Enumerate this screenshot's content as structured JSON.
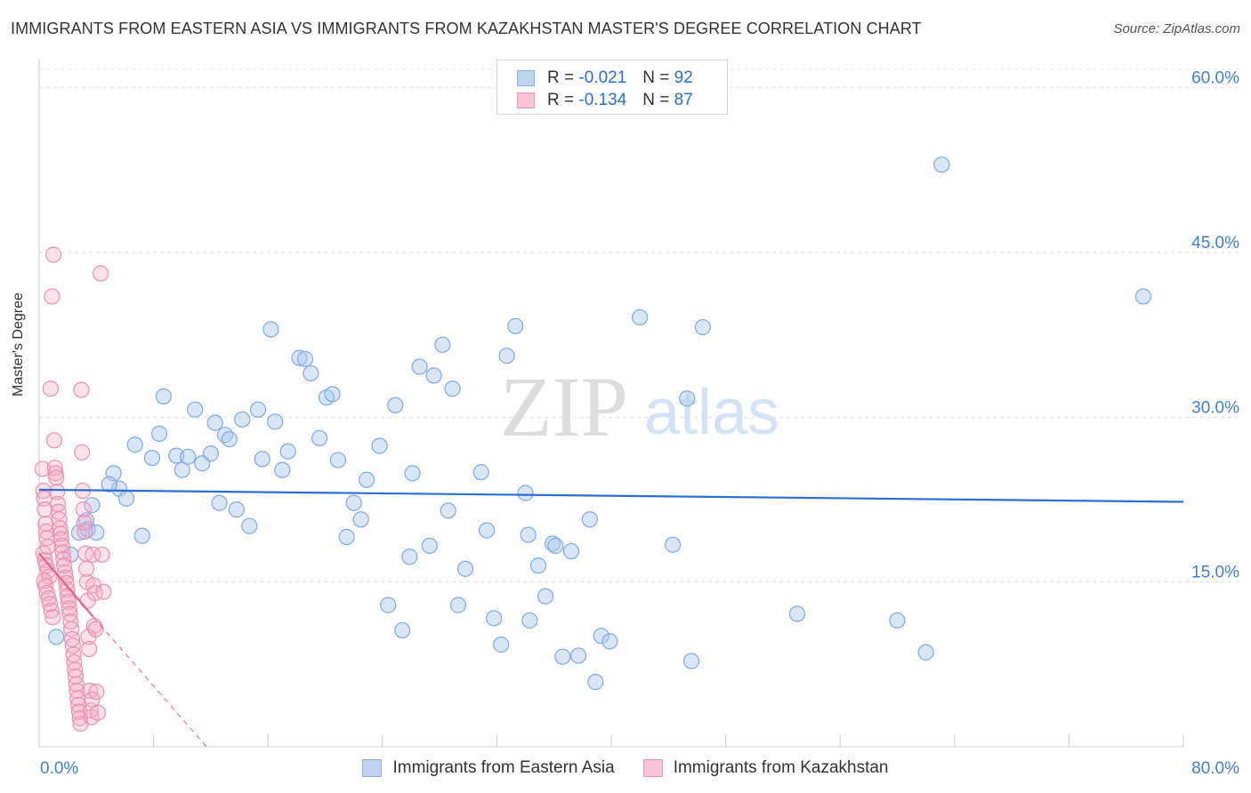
{
  "title": "IMMIGRANTS FROM EASTERN ASIA VS IMMIGRANTS FROM KAZAKHSTAN MASTER'S DEGREE CORRELATION CHART",
  "source": "Source: ZipAtlas.com",
  "watermark": {
    "zip": "ZIP",
    "atlas": "atlas"
  },
  "colors": {
    "blue": "#a9c8ef",
    "blue_line": "#2b6fd4",
    "pink": "#f4a9c2",
    "pink_line": "#e8608c",
    "tick_text": "#3f7fd6"
  },
  "legend_top": {
    "rows": [
      {
        "r_label": "R =",
        "r_value": "-0.021",
        "n_label": "N =",
        "n_value": "92"
      },
      {
        "r_label": "R =",
        "r_value": "-0.134",
        "n_label": "N =",
        "n_value": "87"
      }
    ]
  },
  "legend_bottom": {
    "series": [
      "Immigrants from Eastern Asia",
      "Immigrants from Kazakhstan"
    ]
  },
  "chart_data": {
    "type": "scatter",
    "title": "IMMIGRANTS FROM EASTERN ASIA VS IMMIGRANTS FROM KAZAKHSTAN MASTER'S DEGREE CORRELATION CHART",
    "xlabel": "",
    "ylabel": "Master's Degree",
    "xlim": [
      0,
      80
    ],
    "ylim": [
      0,
      62
    ],
    "x_tick_labels": [
      "0.0%",
      "80.0%"
    ],
    "y_ticks": [
      15,
      30,
      45,
      60
    ],
    "y_tick_labels": [
      "15.0%",
      "30.0%",
      "45.0%",
      "60.0%"
    ],
    "series": [
      {
        "name": "Immigrants from Eastern Asia",
        "R": -0.021,
        "N": 92,
        "trend": {
          "x": [
            0,
            80
          ],
          "y": [
            23.4,
            22.3
          ],
          "style": "solid"
        },
        "points": [
          [
            1.2,
            10.0
          ],
          [
            2.2,
            17.5
          ],
          [
            2.8,
            19.5
          ],
          [
            3.3,
            20.6
          ],
          [
            3.7,
            22.0
          ],
          [
            3.4,
            19.8
          ],
          [
            4.0,
            19.5
          ],
          [
            5.2,
            24.9
          ],
          [
            5.6,
            23.5
          ],
          [
            4.9,
            23.9
          ],
          [
            6.1,
            22.6
          ],
          [
            6.7,
            27.5
          ],
          [
            7.2,
            19.2
          ],
          [
            7.9,
            26.3
          ],
          [
            8.4,
            28.5
          ],
          [
            8.7,
            31.9
          ],
          [
            9.6,
            26.5
          ],
          [
            10.0,
            25.2
          ],
          [
            10.4,
            26.4
          ],
          [
            10.9,
            30.7
          ],
          [
            11.4,
            25.8
          ],
          [
            12.0,
            26.7
          ],
          [
            12.3,
            29.5
          ],
          [
            12.6,
            22.2
          ],
          [
            13.0,
            28.4
          ],
          [
            13.3,
            28.0
          ],
          [
            13.8,
            21.6
          ],
          [
            14.2,
            29.8
          ],
          [
            14.7,
            20.1
          ],
          [
            15.3,
            30.7
          ],
          [
            15.6,
            26.2
          ],
          [
            16.2,
            38.0
          ],
          [
            16.5,
            29.6
          ],
          [
            17.0,
            25.2
          ],
          [
            17.4,
            26.9
          ],
          [
            18.2,
            35.4
          ],
          [
            18.6,
            35.3
          ],
          [
            19.0,
            34.0
          ],
          [
            19.6,
            28.1
          ],
          [
            20.1,
            31.8
          ],
          [
            20.5,
            32.1
          ],
          [
            20.9,
            26.1
          ],
          [
            21.5,
            19.1
          ],
          [
            22.0,
            22.2
          ],
          [
            22.5,
            20.7
          ],
          [
            22.9,
            24.3
          ],
          [
            23.8,
            27.4
          ],
          [
            24.4,
            12.9
          ],
          [
            24.9,
            31.1
          ],
          [
            25.4,
            10.6
          ],
          [
            25.9,
            17.3
          ],
          [
            26.1,
            24.9
          ],
          [
            26.6,
            34.6
          ],
          [
            27.3,
            18.3
          ],
          [
            27.6,
            33.8
          ],
          [
            28.2,
            36.6
          ],
          [
            28.6,
            21.5
          ],
          [
            28.9,
            32.6
          ],
          [
            29.3,
            12.9
          ],
          [
            29.8,
            16.2
          ],
          [
            30.9,
            25.0
          ],
          [
            31.3,
            19.7
          ],
          [
            31.8,
            11.7
          ],
          [
            32.3,
            9.3
          ],
          [
            32.7,
            35.6
          ],
          [
            33.3,
            38.3
          ],
          [
            34.0,
            23.1
          ],
          [
            34.2,
            19.3
          ],
          [
            34.3,
            11.5
          ],
          [
            34.9,
            16.5
          ],
          [
            35.4,
            13.7
          ],
          [
            35.9,
            18.5
          ],
          [
            36.1,
            18.3
          ],
          [
            36.6,
            8.2
          ],
          [
            37.2,
            17.8
          ],
          [
            37.7,
            8.3
          ],
          [
            38.5,
            20.7
          ],
          [
            38.9,
            5.9
          ],
          [
            39.3,
            10.1
          ],
          [
            39.9,
            9.6
          ],
          [
            42.0,
            39.1
          ],
          [
            44.3,
            18.4
          ],
          [
            45.3,
            31.7
          ],
          [
            45.6,
            7.8
          ],
          [
            46.4,
            38.2
          ],
          [
            53.0,
            12.1
          ],
          [
            60.0,
            11.5
          ],
          [
            62.0,
            8.6
          ],
          [
            63.1,
            53.0
          ],
          [
            77.2,
            41.0
          ]
        ]
      },
      {
        "name": "Immigrants from Kazakhstan",
        "R": -0.134,
        "N": 87,
        "trend": {
          "x": [
            0,
            3.8
          ],
          "y": [
            17.6,
            11.8
          ],
          "style": "solid",
          "dashed_extension_to": [
            11.7,
            0.0
          ]
        },
        "points": [
          [
            0.25,
            25.3
          ],
          [
            0.3,
            23.3
          ],
          [
            0.35,
            22.6
          ],
          [
            0.4,
            21.6
          ],
          [
            0.45,
            20.3
          ],
          [
            0.5,
            19.6
          ],
          [
            0.55,
            19.0
          ],
          [
            0.6,
            18.2
          ],
          [
            0.3,
            17.6
          ],
          [
            0.4,
            17.0
          ],
          [
            0.5,
            16.5
          ],
          [
            0.6,
            16.0
          ],
          [
            0.7,
            15.5
          ],
          [
            0.35,
            15.1
          ],
          [
            0.45,
            14.6
          ],
          [
            0.55,
            14.0
          ],
          [
            0.65,
            13.5
          ],
          [
            0.75,
            13.0
          ],
          [
            0.85,
            12.4
          ],
          [
            0.95,
            11.8
          ],
          [
            1.0,
            44.8
          ],
          [
            0.9,
            41.0
          ],
          [
            0.8,
            32.6
          ],
          [
            1.05,
            27.9
          ],
          [
            1.1,
            25.4
          ],
          [
            1.15,
            24.9
          ],
          [
            1.2,
            24.5
          ],
          [
            1.25,
            23.2
          ],
          [
            1.3,
            22.1
          ],
          [
            1.35,
            21.4
          ],
          [
            1.4,
            20.7
          ],
          [
            1.45,
            19.9
          ],
          [
            1.5,
            19.4
          ],
          [
            1.55,
            18.9
          ],
          [
            1.6,
            18.3
          ],
          [
            1.65,
            17.7
          ],
          [
            1.7,
            17.1
          ],
          [
            1.75,
            16.5
          ],
          [
            1.8,
            15.9
          ],
          [
            1.85,
            15.4
          ],
          [
            1.9,
            14.9
          ],
          [
            1.95,
            14.3
          ],
          [
            2.0,
            13.7
          ],
          [
            2.05,
            13.2
          ],
          [
            2.1,
            12.6
          ],
          [
            2.15,
            12.1
          ],
          [
            2.2,
            11.4
          ],
          [
            2.25,
            10.7
          ],
          [
            2.3,
            9.8
          ],
          [
            2.35,
            9.2
          ],
          [
            2.4,
            8.4
          ],
          [
            2.45,
            7.7
          ],
          [
            2.5,
            7.0
          ],
          [
            2.55,
            6.4
          ],
          [
            2.6,
            5.7
          ],
          [
            2.65,
            5.1
          ],
          [
            2.7,
            4.4
          ],
          [
            2.75,
            3.8
          ],
          [
            2.8,
            3.2
          ],
          [
            2.85,
            2.6
          ],
          [
            2.9,
            2.1
          ],
          [
            2.95,
            32.5
          ],
          [
            3.0,
            26.8
          ],
          [
            3.05,
            23.3
          ],
          [
            3.1,
            21.6
          ],
          [
            3.15,
            20.4
          ],
          [
            3.2,
            19.6
          ],
          [
            3.25,
            17.6
          ],
          [
            3.3,
            16.2
          ],
          [
            3.35,
            15.0
          ],
          [
            3.4,
            13.3
          ],
          [
            3.45,
            10.0
          ],
          [
            3.5,
            8.9
          ],
          [
            3.55,
            5.1
          ],
          [
            3.6,
            3.3
          ],
          [
            3.65,
            2.7
          ],
          [
            3.7,
            4.3
          ],
          [
            3.75,
            17.5
          ],
          [
            3.8,
            14.7
          ],
          [
            3.85,
            11.0
          ],
          [
            3.9,
            14.0
          ],
          [
            3.95,
            10.7
          ],
          [
            4.0,
            5.0
          ],
          [
            4.1,
            3.1
          ],
          [
            4.3,
            43.1
          ],
          [
            4.4,
            17.5
          ],
          [
            4.5,
            14.1
          ]
        ]
      }
    ]
  }
}
